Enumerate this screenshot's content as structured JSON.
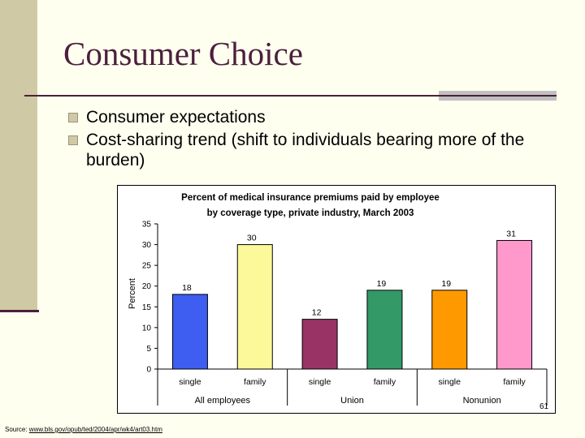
{
  "slide": {
    "title": "Consumer Choice",
    "bullets": [
      "Consumer expectations",
      "Cost-sharing trend (shift to individuals bearing more of the burden)"
    ],
    "slide_number": "61",
    "source_prefix": "Source: ",
    "source_link": "www.bls.gov/opub/ted/2004/apr/wk4/art03.htm"
  },
  "colors": {
    "title": "#4c1f3c",
    "background": "#fffff0",
    "accent_bar": "#cfc9a6"
  },
  "chart_data": {
    "type": "bar",
    "title": "Percent of medical insurance premiums paid by employee",
    "subtitle": "by coverage type, private industry, March 2003",
    "ylabel": "Percent",
    "xlabel": "",
    "ylim": [
      0,
      35
    ],
    "yticks": [
      0,
      5,
      10,
      15,
      20,
      25,
      30,
      35
    ],
    "grid": false,
    "groups": [
      {
        "name": "All employees",
        "categories": [
          "single",
          "family"
        ]
      },
      {
        "name": "Union",
        "categories": [
          "single",
          "family"
        ]
      },
      {
        "name": "Nonunion",
        "categories": [
          "single",
          "family"
        ]
      }
    ],
    "categories": [
      "single",
      "family",
      "single",
      "family",
      "single",
      "family"
    ],
    "values": [
      18,
      30,
      12,
      19,
      19,
      31
    ],
    "bar_colors": [
      "#3d5ef0",
      "#fbf99a",
      "#993366",
      "#339966",
      "#ff9900",
      "#ff99cc"
    ]
  }
}
